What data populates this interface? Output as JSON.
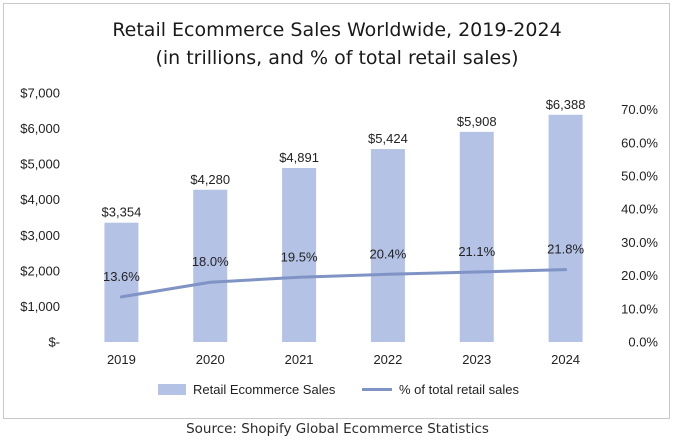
{
  "chart_data": {
    "type": "bar",
    "title_lines": [
      "Retail Ecommerce Sales Worldwide, 2019-2024",
      "(in trillions, and % of total retail sales)"
    ],
    "categories": [
      "2019",
      "2020",
      "2021",
      "2022",
      "2023",
      "2024"
    ],
    "series": [
      {
        "name": "Retail Ecommerce Sales",
        "type": "bar",
        "axis": "left",
        "color": "#b4c2e6",
        "values": [
          3354,
          4280,
          4891,
          5424,
          5908,
          6388
        ],
        "labels": [
          "$3,354",
          "$4,280",
          "$4,891",
          "$5,424",
          "$5,908",
          "$6,388"
        ]
      },
      {
        "name": "% of total retail sales",
        "type": "line",
        "axis": "right",
        "color": "#7f93c5",
        "values": [
          13.6,
          18.0,
          19.5,
          20.4,
          21.1,
          21.8
        ],
        "labels": [
          "13.6%",
          "18.0%",
          "19.5%",
          "20.4%",
          "21.1%",
          "21.8%"
        ]
      }
    ],
    "y_left": {
      "range": [
        0,
        7000
      ],
      "ticks": [
        0,
        1000,
        2000,
        3000,
        4000,
        5000,
        6000,
        7000
      ],
      "tick_labels": [
        "$-",
        "$1,000",
        "$2,000",
        "$3,000",
        "$4,000",
        "$5,000",
        "$6,000",
        "$7,000"
      ]
    },
    "y_right": {
      "range": [
        0,
        75
      ],
      "ticks": [
        0,
        10,
        20,
        30,
        40,
        50,
        60,
        70
      ],
      "tick_labels": [
        "0.0%",
        "10.0%",
        "20.0%",
        "30.0%",
        "40.0%",
        "50.0%",
        "60.0%",
        "70.0%"
      ]
    },
    "grid": false,
    "legend_position": "bottom"
  },
  "source": "Source: Shopify Global Ecommerce Statistics"
}
